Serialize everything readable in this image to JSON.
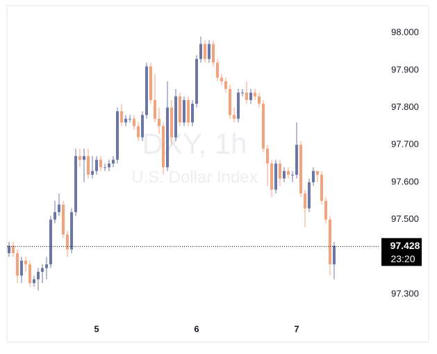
{
  "chart_data": {
    "type": "candlestick",
    "title": "DXY, 1h",
    "subtitle": "U.S. Dollar Index",
    "x": [
      0,
      1,
      2,
      3,
      4,
      5,
      6,
      7,
      8,
      9,
      10,
      11,
      12,
      13,
      14,
      15,
      16,
      17,
      18,
      19,
      20,
      21,
      22,
      23,
      24,
      25,
      26,
      27,
      28,
      29,
      30,
      31,
      32,
      33,
      34,
      35,
      36,
      37,
      38,
      39,
      40,
      41,
      42,
      43,
      44,
      45,
      46,
      47,
      48,
      49,
      50,
      51,
      52,
      53,
      54,
      55,
      56,
      57,
      58,
      59,
      60,
      61,
      62,
      63,
      64,
      65,
      66,
      67,
      68,
      69,
      70,
      71,
      72,
      73,
      74,
      75,
      76,
      77,
      78
    ],
    "open": [
      97.41,
      97.43,
      97.41,
      97.35,
      97.39,
      97.38,
      97.33,
      97.34,
      97.36,
      97.37,
      97.38,
      97.5,
      97.52,
      97.54,
      97.46,
      97.42,
      97.52,
      97.67,
      97.66,
      97.67,
      97.62,
      97.63,
      97.66,
      97.64,
      97.64,
      97.65,
      97.66,
      97.79,
      97.76,
      97.77,
      97.77,
      97.75,
      97.72,
      97.78,
      97.91,
      97.82,
      97.77,
      97.75,
      97.64,
      97.8,
      97.72,
      97.83,
      97.76,
      97.82,
      97.76,
      97.81,
      97.93,
      97.97,
      97.93,
      97.97,
      97.92,
      97.88,
      97.87,
      97.85,
      97.78,
      97.77,
      97.84,
      97.84,
      97.82,
      97.84,
      97.83,
      97.81,
      97.69,
      97.65,
      97.58,
      97.65,
      97.61,
      97.63,
      97.62,
      97.62,
      97.7,
      97.57,
      97.53,
      97.6,
      97.63,
      97.62,
      97.55,
      97.5,
      97.38
    ],
    "high": [
      97.44,
      97.44,
      97.42,
      97.4,
      97.4,
      97.39,
      97.35,
      97.37,
      97.38,
      97.4,
      97.51,
      97.55,
      97.57,
      97.55,
      97.47,
      97.53,
      97.69,
      97.69,
      97.69,
      97.69,
      97.67,
      97.67,
      97.67,
      97.65,
      97.66,
      97.67,
      97.8,
      97.81,
      97.78,
      97.78,
      97.78,
      97.76,
      97.79,
      97.92,
      97.92,
      97.89,
      97.8,
      97.76,
      97.87,
      97.82,
      97.85,
      97.84,
      97.83,
      97.83,
      97.82,
      97.94,
      97.99,
      97.98,
      97.98,
      97.98,
      97.93,
      97.89,
      97.88,
      97.86,
      97.8,
      97.85,
      97.85,
      97.87,
      97.85,
      97.85,
      97.84,
      97.82,
      97.7,
      97.66,
      97.66,
      97.66,
      97.64,
      97.64,
      97.63,
      97.76,
      97.71,
      97.58,
      97.61,
      97.64,
      97.63,
      97.63,
      97.56,
      97.51,
      97.44
    ],
    "low": [
      97.4,
      97.4,
      97.33,
      97.33,
      97.36,
      97.32,
      97.32,
      97.31,
      97.33,
      97.34,
      97.37,
      97.49,
      97.51,
      97.45,
      97.4,
      97.41,
      97.51,
      97.64,
      97.6,
      97.61,
      97.61,
      97.62,
      97.63,
      97.63,
      97.63,
      97.64,
      97.65,
      97.75,
      97.75,
      97.76,
      97.74,
      97.71,
      97.71,
      97.77,
      97.81,
      97.76,
      97.73,
      97.62,
      97.63,
      97.7,
      97.71,
      97.75,
      97.75,
      97.75,
      97.75,
      97.8,
      97.92,
      97.92,
      97.92,
      97.91,
      97.87,
      97.86,
      97.84,
      97.77,
      97.76,
      97.76,
      97.83,
      97.81,
      97.81,
      97.82,
      97.8,
      97.68,
      97.59,
      97.56,
      97.57,
      97.59,
      97.6,
      97.61,
      97.6,
      97.61,
      97.56,
      97.48,
      97.52,
      97.59,
      97.6,
      97.54,
      97.49,
      97.35,
      97.34
    ],
    "close": [
      97.43,
      97.41,
      97.35,
      97.39,
      97.38,
      97.33,
      97.34,
      97.36,
      97.37,
      97.38,
      97.5,
      97.52,
      97.54,
      97.46,
      97.42,
      97.52,
      97.67,
      97.66,
      97.67,
      97.62,
      97.63,
      97.66,
      97.64,
      97.64,
      97.65,
      97.66,
      97.79,
      97.76,
      97.77,
      97.77,
      97.75,
      97.72,
      97.78,
      97.91,
      97.82,
      97.77,
      97.75,
      97.64,
      97.8,
      97.72,
      97.83,
      97.76,
      97.82,
      97.76,
      97.81,
      97.93,
      97.97,
      97.93,
      97.97,
      97.92,
      97.88,
      97.87,
      97.85,
      97.78,
      97.77,
      97.84,
      97.84,
      97.82,
      97.84,
      97.83,
      97.81,
      97.69,
      97.65,
      97.58,
      97.65,
      97.61,
      97.63,
      97.62,
      97.62,
      97.7,
      97.57,
      97.53,
      97.6,
      97.63,
      97.62,
      97.55,
      97.5,
      97.38,
      97.43
    ],
    "up_color": "#6b76a8",
    "down_color": "#f5a27b",
    "xlim": [
      -0.5,
      88.67
    ],
    "xticks": [
      {
        "value": 21,
        "label": "5"
      },
      {
        "value": 45,
        "label": "6"
      },
      {
        "value": 69,
        "label": "7"
      }
    ],
    "ylim": [
      97.235,
      98.073
    ],
    "yticks": [
      {
        "value": 97.3,
        "label": "97.300"
      },
      {
        "value": 97.4,
        "label": "97.400"
      },
      {
        "value": 97.5,
        "label": "97.500"
      },
      {
        "value": 97.6,
        "label": "97.600"
      },
      {
        "value": 97.7,
        "label": "97.700"
      },
      {
        "value": 97.8,
        "label": "97.800"
      },
      {
        "value": 97.9,
        "label": "97.900"
      },
      {
        "value": 98.0,
        "label": "98.000"
      }
    ],
    "last_price": 97.428,
    "countdown": "23:20"
  }
}
